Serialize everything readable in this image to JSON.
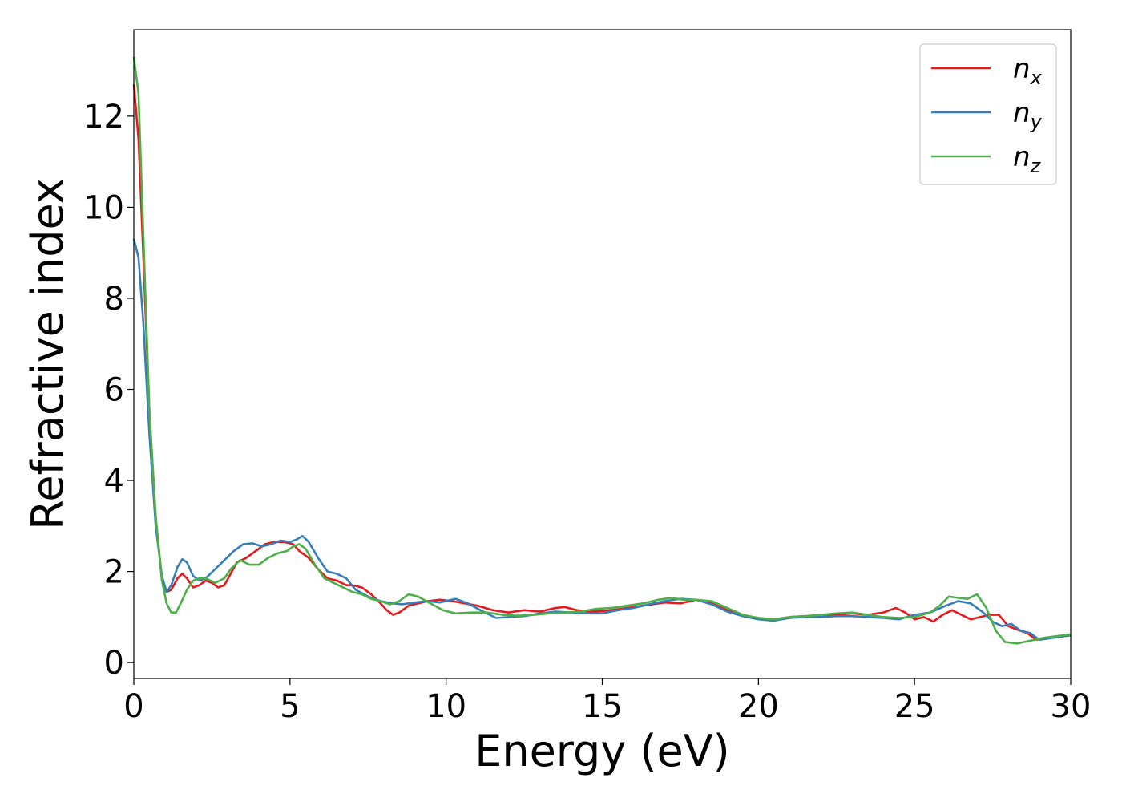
{
  "chart_data": {
    "type": "line",
    "title": "",
    "xlabel": "Energy (eV)",
    "ylabel": "Refractive index",
    "xlim": [
      0,
      30
    ],
    "ylim": [
      -0.35,
      13.9
    ],
    "xticks": [
      0,
      5,
      10,
      15,
      20,
      25,
      30
    ],
    "yticks": [
      0,
      2,
      4,
      6,
      8,
      10,
      12
    ],
    "grid": false,
    "legend_position": "top-right",
    "series": [
      {
        "name": "n_x",
        "label_base": "n",
        "label_sub": "x",
        "color": "#e41a1c",
        "points": [
          [
            0,
            12.7
          ],
          [
            0.15,
            11.5
          ],
          [
            0.3,
            9.0
          ],
          [
            0.5,
            5.5
          ],
          [
            0.7,
            3.2
          ],
          [
            0.9,
            1.8
          ],
          [
            1.05,
            1.55
          ],
          [
            1.2,
            1.6
          ],
          [
            1.4,
            1.85
          ],
          [
            1.55,
            1.95
          ],
          [
            1.7,
            1.85
          ],
          [
            1.9,
            1.65
          ],
          [
            2.1,
            1.7
          ],
          [
            2.3,
            1.8
          ],
          [
            2.5,
            1.75
          ],
          [
            2.7,
            1.65
          ],
          [
            2.9,
            1.7
          ],
          [
            3.1,
            1.95
          ],
          [
            3.3,
            2.2
          ],
          [
            3.6,
            2.3
          ],
          [
            3.9,
            2.45
          ],
          [
            4.2,
            2.6
          ],
          [
            4.5,
            2.65
          ],
          [
            4.8,
            2.65
          ],
          [
            5.1,
            2.6
          ],
          [
            5.3,
            2.45
          ],
          [
            5.6,
            2.3
          ],
          [
            5.9,
            2.05
          ],
          [
            6.2,
            1.85
          ],
          [
            6.5,
            1.8
          ],
          [
            6.8,
            1.7
          ],
          [
            7.0,
            1.7
          ],
          [
            7.3,
            1.65
          ],
          [
            7.6,
            1.5
          ],
          [
            7.9,
            1.3
          ],
          [
            8.1,
            1.15
          ],
          [
            8.3,
            1.05
          ],
          [
            8.5,
            1.1
          ],
          [
            8.8,
            1.25
          ],
          [
            9.1,
            1.3
          ],
          [
            9.4,
            1.35
          ],
          [
            9.8,
            1.38
          ],
          [
            10.2,
            1.35
          ],
          [
            10.6,
            1.3
          ],
          [
            11.0,
            1.25
          ],
          [
            11.5,
            1.15
          ],
          [
            12.0,
            1.1
          ],
          [
            12.5,
            1.15
          ],
          [
            13.0,
            1.12
          ],
          [
            13.5,
            1.2
          ],
          [
            13.8,
            1.22
          ],
          [
            14.2,
            1.15
          ],
          [
            14.6,
            1.12
          ],
          [
            15.0,
            1.13
          ],
          [
            15.5,
            1.17
          ],
          [
            16.0,
            1.22
          ],
          [
            16.5,
            1.27
          ],
          [
            17.0,
            1.32
          ],
          [
            17.5,
            1.3
          ],
          [
            18.0,
            1.38
          ],
          [
            18.5,
            1.3
          ],
          [
            19.0,
            1.15
          ],
          [
            19.5,
            1.03
          ],
          [
            20.0,
            0.98
          ],
          [
            20.5,
            0.95
          ],
          [
            21.0,
            1.0
          ],
          [
            21.5,
            1.02
          ],
          [
            22.0,
            1.0
          ],
          [
            22.5,
            1.05
          ],
          [
            23.0,
            1.08
          ],
          [
            23.5,
            1.05
          ],
          [
            24.0,
            1.1
          ],
          [
            24.4,
            1.2
          ],
          [
            24.7,
            1.1
          ],
          [
            25.0,
            0.95
          ],
          [
            25.3,
            1.0
          ],
          [
            25.6,
            0.9
          ],
          [
            25.9,
            1.05
          ],
          [
            26.2,
            1.15
          ],
          [
            26.5,
            1.05
          ],
          [
            26.8,
            0.95
          ],
          [
            27.1,
            1.0
          ],
          [
            27.4,
            1.05
          ],
          [
            27.7,
            1.05
          ],
          [
            28.0,
            0.8
          ],
          [
            28.3,
            0.72
          ],
          [
            28.6,
            0.65
          ],
          [
            28.9,
            0.5
          ],
          [
            29.3,
            0.55
          ],
          [
            30.0,
            0.6
          ]
        ]
      },
      {
        "name": "n_y",
        "label_base": "n",
        "label_sub": "y",
        "color": "#377eb8",
        "points": [
          [
            0,
            9.3
          ],
          [
            0.15,
            8.9
          ],
          [
            0.3,
            7.5
          ],
          [
            0.5,
            5.0
          ],
          [
            0.7,
            3.0
          ],
          [
            0.9,
            1.9
          ],
          [
            1.05,
            1.55
          ],
          [
            1.2,
            1.7
          ],
          [
            1.4,
            2.1
          ],
          [
            1.55,
            2.27
          ],
          [
            1.7,
            2.2
          ],
          [
            1.9,
            1.9
          ],
          [
            2.1,
            1.8
          ],
          [
            2.3,
            1.85
          ],
          [
            2.6,
            2.05
          ],
          [
            2.9,
            2.25
          ],
          [
            3.2,
            2.45
          ],
          [
            3.5,
            2.6
          ],
          [
            3.8,
            2.62
          ],
          [
            4.1,
            2.55
          ],
          [
            4.4,
            2.6
          ],
          [
            4.7,
            2.68
          ],
          [
            5.0,
            2.65
          ],
          [
            5.2,
            2.7
          ],
          [
            5.4,
            2.78
          ],
          [
            5.6,
            2.65
          ],
          [
            5.9,
            2.3
          ],
          [
            6.2,
            2.0
          ],
          [
            6.5,
            1.95
          ],
          [
            6.8,
            1.85
          ],
          [
            7.1,
            1.6
          ],
          [
            7.5,
            1.45
          ],
          [
            7.9,
            1.35
          ],
          [
            8.3,
            1.3
          ],
          [
            8.6,
            1.28
          ],
          [
            9.0,
            1.32
          ],
          [
            9.4,
            1.35
          ],
          [
            9.8,
            1.32
          ],
          [
            10.3,
            1.4
          ],
          [
            10.7,
            1.3
          ],
          [
            11.1,
            1.15
          ],
          [
            11.4,
            1.05
          ],
          [
            11.6,
            0.98
          ],
          [
            12.0,
            1.0
          ],
          [
            12.5,
            1.02
          ],
          [
            13.0,
            1.08
          ],
          [
            13.5,
            1.12
          ],
          [
            14.0,
            1.1
          ],
          [
            14.5,
            1.08
          ],
          [
            15.0,
            1.08
          ],
          [
            15.5,
            1.15
          ],
          [
            16.0,
            1.2
          ],
          [
            16.5,
            1.28
          ],
          [
            17.0,
            1.35
          ],
          [
            17.5,
            1.4
          ],
          [
            18.0,
            1.38
          ],
          [
            18.5,
            1.28
          ],
          [
            19.0,
            1.12
          ],
          [
            19.5,
            1.02
          ],
          [
            20.0,
            0.95
          ],
          [
            20.5,
            0.92
          ],
          [
            21.0,
            0.98
          ],
          [
            21.5,
            1.0
          ],
          [
            22.0,
            1.0
          ],
          [
            22.5,
            1.02
          ],
          [
            23.0,
            1.02
          ],
          [
            23.5,
            1.0
          ],
          [
            24.0,
            0.98
          ],
          [
            24.5,
            0.95
          ],
          [
            25.0,
            1.05
          ],
          [
            25.5,
            1.1
          ],
          [
            26.0,
            1.25
          ],
          [
            26.4,
            1.35
          ],
          [
            26.8,
            1.3
          ],
          [
            27.2,
            1.1
          ],
          [
            27.5,
            0.9
          ],
          [
            27.8,
            0.8
          ],
          [
            28.1,
            0.85
          ],
          [
            28.4,
            0.7
          ],
          [
            28.7,
            0.65
          ],
          [
            29.0,
            0.5
          ],
          [
            29.5,
            0.55
          ],
          [
            30.0,
            0.6
          ]
        ]
      },
      {
        "name": "n_z",
        "label_base": "n",
        "label_sub": "z",
        "color": "#4daf4a",
        "points": [
          [
            0,
            13.3
          ],
          [
            0.15,
            12.5
          ],
          [
            0.3,
            9.5
          ],
          [
            0.5,
            5.5
          ],
          [
            0.7,
            3.2
          ],
          [
            0.9,
            1.8
          ],
          [
            1.05,
            1.3
          ],
          [
            1.2,
            1.1
          ],
          [
            1.35,
            1.1
          ],
          [
            1.5,
            1.3
          ],
          [
            1.7,
            1.6
          ],
          [
            1.9,
            1.8
          ],
          [
            2.1,
            1.85
          ],
          [
            2.3,
            1.85
          ],
          [
            2.6,
            1.75
          ],
          [
            2.9,
            1.85
          ],
          [
            3.1,
            2.05
          ],
          [
            3.4,
            2.25
          ],
          [
            3.7,
            2.15
          ],
          [
            4.0,
            2.15
          ],
          [
            4.3,
            2.3
          ],
          [
            4.6,
            2.4
          ],
          [
            4.9,
            2.45
          ],
          [
            5.1,
            2.55
          ],
          [
            5.3,
            2.6
          ],
          [
            5.5,
            2.5
          ],
          [
            5.8,
            2.15
          ],
          [
            6.1,
            1.85
          ],
          [
            6.4,
            1.75
          ],
          [
            6.7,
            1.65
          ],
          [
            7.0,
            1.55
          ],
          [
            7.3,
            1.5
          ],
          [
            7.6,
            1.4
          ],
          [
            7.9,
            1.35
          ],
          [
            8.2,
            1.28
          ],
          [
            8.5,
            1.35
          ],
          [
            8.8,
            1.5
          ],
          [
            9.1,
            1.45
          ],
          [
            9.5,
            1.3
          ],
          [
            9.9,
            1.15
          ],
          [
            10.3,
            1.08
          ],
          [
            10.8,
            1.1
          ],
          [
            11.3,
            1.1
          ],
          [
            11.8,
            1.05
          ],
          [
            12.3,
            1.03
          ],
          [
            12.8,
            1.05
          ],
          [
            13.3,
            1.08
          ],
          [
            13.8,
            1.1
          ],
          [
            14.3,
            1.12
          ],
          [
            14.8,
            1.18
          ],
          [
            15.3,
            1.2
          ],
          [
            15.8,
            1.25
          ],
          [
            16.3,
            1.3
          ],
          [
            16.8,
            1.38
          ],
          [
            17.2,
            1.42
          ],
          [
            17.6,
            1.38
          ],
          [
            18.0,
            1.38
          ],
          [
            18.5,
            1.35
          ],
          [
            19.0,
            1.2
          ],
          [
            19.5,
            1.05
          ],
          [
            20.0,
            0.98
          ],
          [
            20.5,
            0.95
          ],
          [
            21.0,
            1.0
          ],
          [
            21.5,
            1.02
          ],
          [
            22.0,
            1.05
          ],
          [
            22.5,
            1.08
          ],
          [
            23.0,
            1.1
          ],
          [
            23.5,
            1.05
          ],
          [
            24.0,
            1.0
          ],
          [
            24.5,
            0.98
          ],
          [
            25.0,
            1.0
          ],
          [
            25.5,
            1.1
          ],
          [
            25.8,
            1.25
          ],
          [
            26.1,
            1.45
          ],
          [
            26.4,
            1.42
          ],
          [
            26.7,
            1.4
          ],
          [
            27.0,
            1.5
          ],
          [
            27.3,
            1.2
          ],
          [
            27.6,
            0.7
          ],
          [
            27.9,
            0.45
          ],
          [
            28.3,
            0.42
          ],
          [
            28.7,
            0.48
          ],
          [
            29.2,
            0.55
          ],
          [
            30.0,
            0.62
          ]
        ]
      }
    ]
  }
}
